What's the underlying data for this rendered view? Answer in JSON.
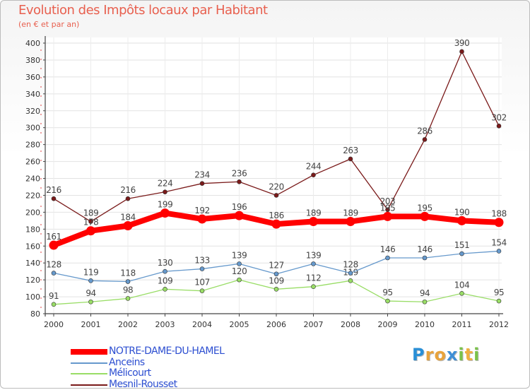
{
  "chart_data": {
    "type": "line",
    "title": "Evolution des Impôts locaux par Habitant",
    "subtitle": "(en € et par an)",
    "xlabel": "",
    "ylabel": "",
    "ylim": [
      80,
      400
    ],
    "yticks": [
      80,
      100,
      120,
      140,
      160,
      180,
      200,
      220,
      240,
      260,
      280,
      300,
      320,
      340,
      360,
      380,
      400
    ],
    "categories": [
      "2000",
      "2001",
      "2002",
      "2003",
      "2004",
      "2005",
      "2006",
      "2007",
      "2008",
      "2009",
      "2010",
      "2011",
      "2012"
    ],
    "series": [
      {
        "name": "Mesnil-Rousset",
        "color": "#7a1a1a",
        "values": [
          216,
          189,
          216,
          224,
          234,
          236,
          220,
          244,
          263,
          203,
          286,
          390,
          302
        ]
      },
      {
        "name": "Mélicourt",
        "color": "#99dd66",
        "values": [
          91,
          94,
          98,
          109,
          107,
          120,
          109,
          112,
          119,
          95,
          94,
          104,
          95
        ]
      },
      {
        "name": "Anceins",
        "color": "#6699cc",
        "values": [
          128,
          119,
          118,
          130,
          133,
          139,
          127,
          139,
          128,
          146,
          146,
          151,
          154
        ]
      },
      {
        "name": "NOTRE-DAME-DU-HAMEL",
        "color": "#ff0000",
        "values": [
          161,
          178,
          184,
          199,
          192,
          196,
          186,
          189,
          189,
          195,
          195,
          190,
          188
        ]
      }
    ],
    "legend_order": [
      "NOTRE-DAME-DU-HAMEL",
      "Anceins",
      "Mélicourt",
      "Mesnil-Rousset"
    ],
    "legend": "bottom-left"
  },
  "logo": {
    "letters": [
      "P",
      "r",
      "o",
      "x",
      "i",
      "t",
      "i"
    ],
    "colors": [
      "#2a8fd6",
      "#e8a33c",
      "#e8a33c",
      "#3f8fd6",
      "#7ac24a",
      "#f0b040",
      "#7ac24a"
    ]
  }
}
